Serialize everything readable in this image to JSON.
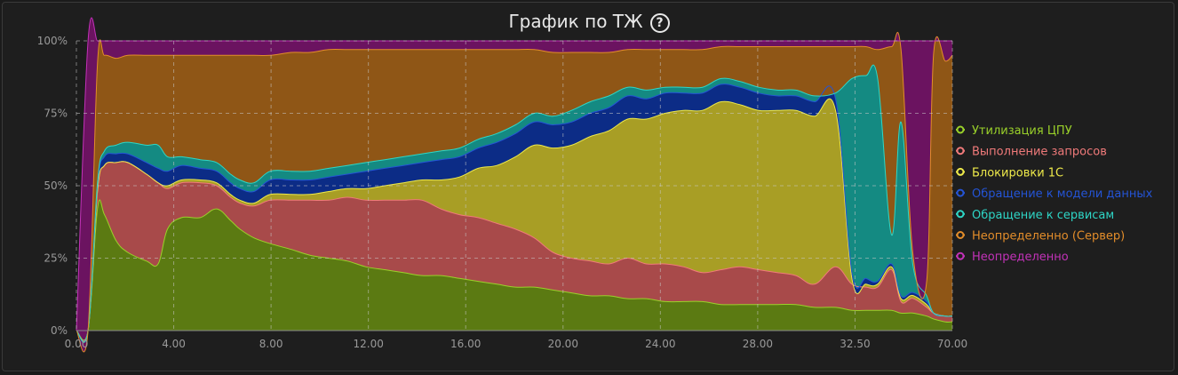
{
  "header": {
    "title": "График по ТЖ",
    "help_icon": "question-circle-icon"
  },
  "chart_data": {
    "type": "area",
    "stacked": true,
    "normalized": true,
    "title": "График по ТЖ",
    "xlabel": "",
    "ylabel": "",
    "x_tick_labels": [
      "0.00",
      "4.00",
      "8.00",
      "12.00",
      "16.00",
      "20.00",
      "24.00",
      "28.00",
      "32.50",
      "70.00"
    ],
    "y_tick_labels": [
      "0%",
      "25%",
      "50%",
      "75%",
      "100%"
    ],
    "ylim": [
      0,
      100
    ],
    "grid": true,
    "legend_position": "right",
    "x": [
      0,
      0.5,
      0.9,
      1.2,
      1.7,
      2.2,
      3.0,
      3.5,
      3.9,
      4.5,
      5.3,
      6.0,
      6.6,
      7.0,
      7.6,
      8.3,
      9.2,
      10.0,
      10.8,
      11.6,
      12.4,
      13.2,
      14.0,
      14.8,
      15.6,
      16.4,
      17.2,
      18.0,
      18.8,
      19.6,
      20.4,
      21.2,
      22.0,
      22.8,
      23.6,
      24.4,
      25.2,
      26.0,
      26.8,
      27.6,
      28.4,
      29.2,
      30.0,
      30.8,
      31.6,
      32.5,
      33.2,
      33.8,
      34.3,
      34.9,
      35.3,
      35.8,
      36.4,
      36.7,
      37.2,
      37.5
    ],
    "series": [
      {
        "name": "Утилизация ЦПУ",
        "color": "#5b7a12",
        "line": "#9ad12a",
        "values": [
          0,
          0,
          42,
          40,
          31,
          27,
          24,
          23,
          35,
          39,
          39,
          42,
          38,
          35,
          32,
          30,
          28,
          26,
          25,
          24,
          22,
          21,
          20,
          19,
          19,
          18,
          17,
          16,
          15,
          15,
          14,
          13,
          12,
          12,
          11,
          11,
          10,
          10,
          10,
          9,
          9,
          9,
          9,
          9,
          8,
          8,
          7,
          7,
          7,
          7,
          6,
          6,
          5,
          4,
          3,
          3
        ]
      },
      {
        "name": "Выполнение запросов",
        "color": "#a84a4a",
        "line": "#f07a7a",
        "values": [
          0,
          0,
          6,
          17,
          27,
          31,
          30,
          28,
          14,
          12,
          12,
          8,
          8,
          9,
          11,
          15,
          17,
          19,
          20,
          22,
          23,
          24,
          25,
          26,
          23,
          22,
          22,
          21,
          20,
          17,
          13,
          12,
          12,
          11,
          14,
          12,
          13,
          12,
          10,
          12,
          13,
          12,
          11,
          10,
          8,
          14,
          9,
          8,
          8,
          14,
          4,
          5,
          3,
          2,
          2,
          2
        ]
      },
      {
        "name": "Блокировки 1С",
        "color": "#a89e25",
        "line": "#eee94a",
        "values": [
          0,
          0,
          0,
          0,
          0,
          0,
          0,
          0,
          1,
          1,
          1,
          1,
          1,
          1,
          1,
          2,
          2,
          2,
          3,
          3,
          4,
          5,
          6,
          7,
          10,
          13,
          17,
          20,
          25,
          32,
          36,
          39,
          43,
          46,
          48,
          50,
          52,
          54,
          56,
          58,
          56,
          55,
          56,
          57,
          58,
          54,
          2,
          1,
          1,
          1,
          1,
          1,
          1,
          0,
          0,
          0
        ]
      },
      {
        "name": "Обращение к модели данных",
        "color": "#0c2c86",
        "line": "#2454d6",
        "values": [
          0,
          0,
          2,
          3,
          3,
          3,
          4,
          5,
          5,
          5,
          4,
          4,
          4,
          4,
          4,
          5,
          5,
          5,
          5,
          5,
          6,
          6,
          6,
          6,
          7,
          7,
          7,
          8,
          8,
          8,
          8,
          8,
          8,
          8,
          8,
          7,
          7,
          6,
          6,
          6,
          6,
          6,
          5,
          5,
          5,
          4,
          2,
          2,
          1,
          1,
          1,
          1,
          1,
          0,
          0,
          0
        ]
      },
      {
        "name": "Обращение к сервисам",
        "color": "#148a82",
        "line": "#2ed6c6",
        "values": [
          0,
          0,
          1,
          2,
          3,
          4,
          6,
          8,
          5,
          3,
          3,
          3,
          3,
          3,
          3,
          3,
          3,
          3,
          3,
          3,
          3,
          3,
          3,
          3,
          3,
          3,
          3,
          3,
          3,
          3,
          3,
          4,
          4,
          4,
          3,
          3,
          2,
          2,
          2,
          2,
          2,
          2,
          2,
          2,
          2,
          2,
          67,
          70,
          70,
          10,
          60,
          10,
          2,
          0,
          0,
          0
        ]
      },
      {
        "name": "Неопределенно (Сервер)",
        "color": "#8f5616",
        "line": "#e38d2a",
        "values": [
          0,
          0,
          41,
          33,
          30,
          30,
          31,
          31,
          35,
          35,
          36,
          37,
          41,
          43,
          44,
          40,
          41,
          41,
          41,
          40,
          39,
          38,
          37,
          36,
          35,
          34,
          31,
          29,
          26,
          22,
          22,
          20,
          17,
          15,
          13,
          14,
          13,
          13,
          13,
          11,
          12,
          14,
          15,
          15,
          17,
          16,
          11,
          10,
          10,
          65,
          25,
          4,
          5,
          90,
          88,
          90
        ]
      },
      {
        "name": "Неопределенно",
        "color": "#6b1360",
        "line": "#c232b8",
        "values": [
          0,
          100,
          8,
          5,
          6,
          5,
          5,
          5,
          5,
          5,
          5,
          5,
          5,
          5,
          5,
          5,
          4,
          4,
          3,
          3,
          3,
          3,
          3,
          3,
          3,
          3,
          3,
          3,
          3,
          3,
          4,
          4,
          4,
          4,
          3,
          3,
          3,
          3,
          3,
          2,
          2,
          2,
          2,
          2,
          2,
          2,
          2,
          2,
          3,
          2,
          3,
          72,
          83,
          4,
          7,
          5
        ]
      }
    ]
  }
}
